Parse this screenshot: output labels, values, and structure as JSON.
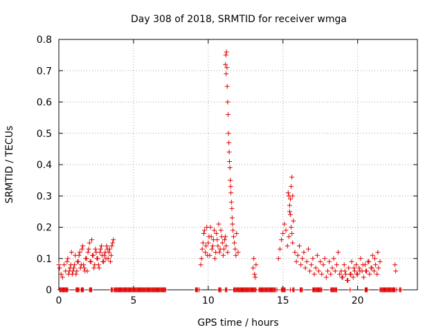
{
  "chart_data": {
    "type": "scatter",
    "title": "Day 308 of 2018, SRMTID for receiver wmga",
    "xlabel": "GPS time / hours",
    "ylabel": "SRMTID / TECUs",
    "xlim": [
      0,
      24
    ],
    "ylim": [
      0,
      0.8
    ],
    "grid": true,
    "x_ticks": [
      0,
      5,
      10,
      15,
      20
    ],
    "y_ticks": [
      0,
      0.1,
      0.2,
      0.3,
      0.4,
      0.5,
      0.6,
      0.7,
      0.8
    ],
    "x_tick_labels": [
      "0",
      "5",
      "10",
      "15",
      "20"
    ],
    "y_tick_labels": [
      "0",
      "0.1",
      "0.2",
      "0.3",
      "0.4",
      "0.5",
      "0.6",
      "0.7",
      "0.8"
    ],
    "marker": "+",
    "series": [
      {
        "name": "SRMTID",
        "color": "#e00000",
        "x": [
          0.0,
          0.05,
          0.15,
          0.25,
          0.35,
          0.45,
          0.55,
          0.65,
          0.75,
          0.85,
          0.95,
          1.05,
          1.15,
          1.25,
          1.35,
          1.45,
          1.55,
          1.65,
          1.75,
          1.85,
          1.95,
          2.05,
          2.15,
          2.25,
          2.35,
          2.45,
          2.55,
          2.65,
          2.75,
          2.85,
          2.95,
          3.05,
          3.15,
          3.25,
          3.35,
          3.45,
          3.55,
          3.65,
          0.6,
          0.7,
          0.8,
          0.9,
          1.0,
          1.1,
          1.2,
          1.3,
          1.4,
          1.5,
          1.6,
          1.7,
          1.8,
          1.9,
          2.0,
          2.1,
          2.2,
          2.3,
          2.4,
          2.5,
          2.6,
          2.7,
          2.8,
          2.9,
          3.0,
          3.1,
          3.2,
          3.3,
          3.4,
          3.5,
          3.6,
          0.1,
          0.3,
          0.5,
          1.2,
          1.5,
          2.1,
          3.7,
          4.0,
          4.5,
          5.0,
          5.5,
          6.0,
          6.5,
          7.0,
          9.5,
          9.6,
          9.7,
          9.8,
          9.9,
          10.0,
          10.1,
          10.2,
          10.3,
          10.4,
          10.5,
          10.6,
          10.7,
          10.8,
          10.9,
          11.0,
          11.1,
          11.2,
          11.3,
          9.55,
          9.65,
          9.75,
          9.85,
          9.95,
          10.05,
          10.15,
          10.25,
          10.35,
          10.45,
          10.55,
          10.65,
          10.75,
          10.85,
          10.95,
          11.05,
          11.15,
          11.15,
          11.18,
          11.2,
          11.22,
          11.25,
          11.27,
          11.3,
          11.33,
          11.35,
          11.38,
          11.4,
          11.42,
          11.45,
          11.48,
          11.5,
          11.52,
          11.55,
          11.58,
          11.6,
          11.62,
          11.65,
          11.7,
          11.75,
          11.8,
          11.85,
          11.9,
          12.0,
          12.5,
          13.0,
          13.05,
          13.1,
          13.15,
          13.2,
          14.7,
          14.8,
          14.9,
          15.0,
          15.1,
          15.2,
          15.3,
          15.4,
          15.45,
          15.5,
          15.55,
          15.6,
          15.65,
          15.7,
          15.8,
          15.9,
          16.0,
          16.1,
          16.2,
          16.3,
          16.4,
          16.5,
          16.6,
          16.7,
          16.8,
          16.9,
          17.0,
          17.1,
          17.2,
          17.3,
          17.4,
          17.5,
          17.6,
          17.7,
          17.8,
          17.9,
          18.0,
          18.1,
          18.2,
          18.3,
          18.4,
          18.5,
          18.6,
          18.7,
          18.8,
          15.35,
          15.4,
          15.45,
          15.5,
          15.55,
          15.6,
          15.65,
          18.9,
          19.0,
          19.1,
          19.2,
          19.3,
          19.4,
          19.5,
          19.6,
          19.7,
          19.8,
          19.9,
          20.0,
          20.1,
          20.2,
          20.3,
          20.4,
          20.5,
          20.6,
          20.7,
          20.8,
          20.9,
          21.0,
          21.1,
          21.2,
          21.3,
          21.4,
          21.5,
          18.95,
          19.15,
          19.35,
          19.55,
          19.75,
          19.95,
          20.15,
          20.35,
          20.55,
          20.75,
          20.95,
          21.15,
          21.35,
          22.5,
          22.55,
          9.4,
          10.7,
          11.7,
          12.2,
          13.4,
          14.6,
          15.0,
          15.5,
          16.2,
          17.0,
          18.2,
          19.5,
          20.6,
          21.8,
          22.6
        ],
        "y": [
          0.08,
          0.07,
          0.05,
          0.04,
          0.08,
          0.06,
          0.09,
          0.05,
          0.07,
          0.12,
          0.06,
          0.08,
          0.05,
          0.09,
          0.11,
          0.07,
          0.13,
          0.08,
          0.06,
          0.1,
          0.12,
          0.15,
          0.09,
          0.11,
          0.07,
          0.13,
          0.1,
          0.08,
          0.12,
          0.14,
          0.09,
          0.11,
          0.1,
          0.13,
          0.12,
          0.09,
          0.14,
          0.16,
          0.1,
          0.06,
          0.08,
          0.05,
          0.07,
          0.11,
          0.06,
          0.09,
          0.12,
          0.08,
          0.14,
          0.07,
          0.1,
          0.06,
          0.13,
          0.09,
          0.16,
          0.11,
          0.08,
          0.12,
          0.1,
          0.07,
          0.13,
          0.11,
          0.09,
          0.12,
          0.14,
          0.1,
          0.13,
          0.11,
          0.15,
          0.0,
          0.0,
          0.0,
          0.0,
          0.0,
          0.0,
          0.0,
          0.0,
          0.0,
          0.0,
          0.0,
          0.0,
          0.0,
          0.0,
          0.08,
          0.13,
          0.18,
          0.12,
          0.2,
          0.15,
          0.11,
          0.17,
          0.14,
          0.19,
          0.12,
          0.16,
          0.21,
          0.13,
          0.17,
          0.11,
          0.16,
          0.14,
          0.12,
          0.1,
          0.15,
          0.19,
          0.14,
          0.11,
          0.17,
          0.2,
          0.13,
          0.16,
          0.1,
          0.18,
          0.14,
          0.12,
          0.19,
          0.15,
          0.13,
          0.17,
          0.72,
          0.75,
          0.69,
          0.76,
          0.71,
          0.65,
          0.6,
          0.56,
          0.5,
          0.47,
          0.44,
          0.41,
          0.39,
          0.35,
          0.33,
          0.31,
          0.28,
          0.26,
          0.23,
          0.21,
          0.19,
          0.17,
          0.15,
          0.13,
          0.11,
          0.18,
          0.12,
          0.0,
          0.07,
          0.1,
          0.05,
          0.04,
          0.08,
          0.1,
          0.13,
          0.16,
          0.18,
          0.21,
          0.19,
          0.14,
          0.17,
          0.25,
          0.29,
          0.33,
          0.36,
          0.3,
          0.22,
          0.12,
          0.09,
          0.11,
          0.14,
          0.08,
          0.1,
          0.12,
          0.07,
          0.09,
          0.13,
          0.06,
          0.08,
          0.1,
          0.05,
          0.07,
          0.11,
          0.06,
          0.09,
          0.05,
          0.08,
          0.1,
          0.04,
          0.06,
          0.09,
          0.05,
          0.07,
          0.1,
          0.06,
          0.08,
          0.12,
          0.05,
          0.31,
          0.3,
          0.27,
          0.24,
          0.2,
          0.18,
          0.15,
          0.06,
          0.04,
          0.08,
          0.05,
          0.03,
          0.07,
          0.05,
          0.09,
          0.04,
          0.06,
          0.08,
          0.05,
          0.07,
          0.1,
          0.06,
          0.04,
          0.08,
          0.06,
          0.09,
          0.05,
          0.07,
          0.11,
          0.06,
          0.08,
          0.05,
          0.07,
          0.09,
          0.04,
          0.06,
          0.03,
          0.05,
          0.07,
          0.05,
          0.06,
          0.08,
          0.06,
          0.09,
          0.07,
          0.1,
          0.12,
          0.08,
          0.06,
          0.0,
          0.0,
          0.0,
          0.0,
          0.0,
          0.0,
          0.0,
          0.0,
          0.0,
          0.0,
          0.0,
          0.0,
          0.0,
          0.0,
          0.0
        ]
      }
    ],
    "zero_runs": [
      [
        0.05,
        0.6
      ],
      [
        1.15,
        1.35
      ],
      [
        1.5,
        1.65
      ],
      [
        2.05,
        2.2
      ],
      [
        3.5,
        3.6
      ],
      [
        3.75,
        7.15
      ],
      [
        9.15,
        9.3
      ],
      [
        10.7,
        10.85
      ],
      [
        11.15,
        11.25
      ],
      [
        11.75,
        13.2
      ],
      [
        13.4,
        14.5
      ],
      [
        14.9,
        15.15
      ],
      [
        15.65,
        15.75
      ],
      [
        16.15,
        16.3
      ],
      [
        17.0,
        17.6
      ],
      [
        18.25,
        18.6
      ],
      [
        20.5,
        20.65
      ],
      [
        21.5,
        22.5
      ],
      [
        22.8,
        22.9
      ]
    ]
  }
}
